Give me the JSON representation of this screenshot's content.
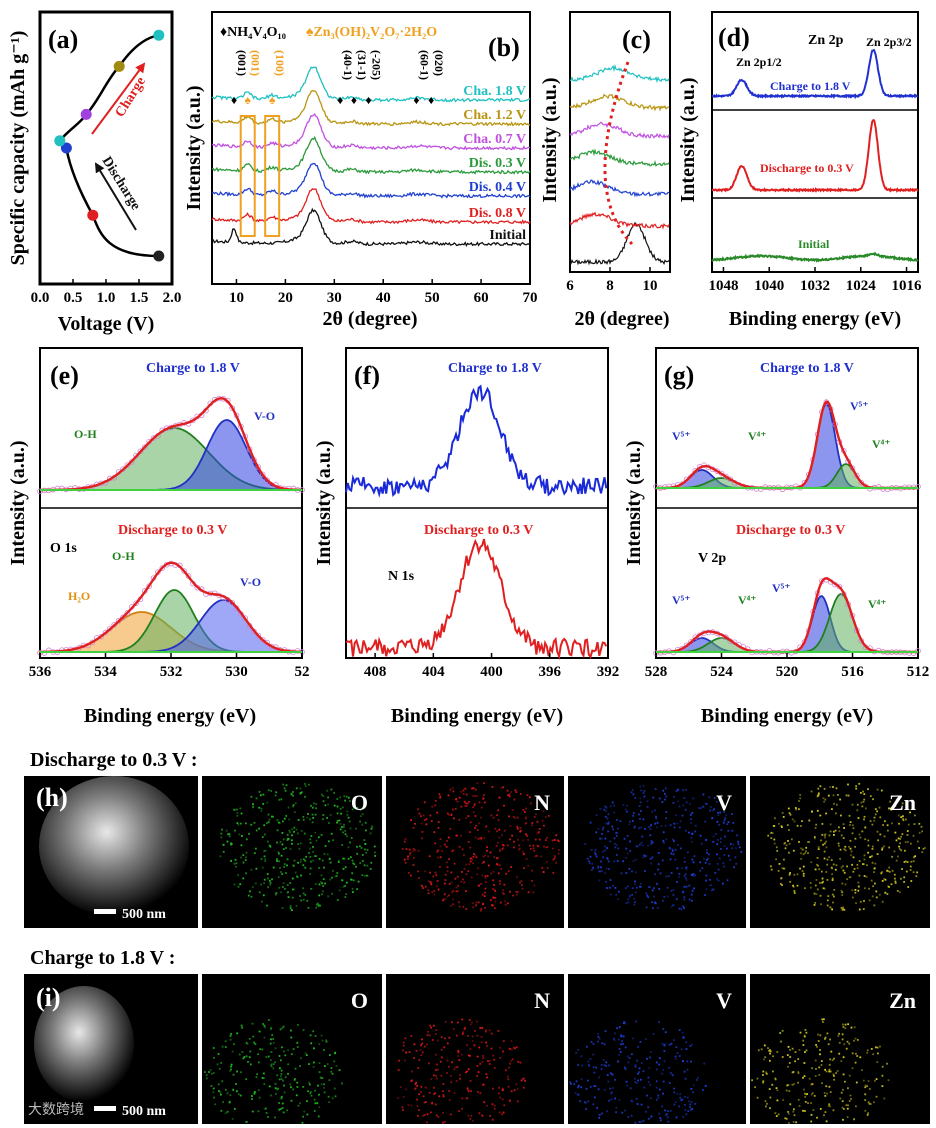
{
  "chart_data": [
    {
      "panel": "(a)",
      "type": "line",
      "xlabel": "Voltage (V)",
      "ylabel": "Specific capacity (mAh g⁻¹)",
      "xlim": [
        0.0,
        2.0
      ],
      "xticks": [
        "0.0",
        "0.5",
        "1.0",
        "1.5",
        "2.0"
      ],
      "annotations": {
        "charge": "Charge",
        "discharge": "Discharge"
      },
      "discharge_points": [
        {
          "v": 1.8,
          "c": 0.05,
          "color": "#222222"
        },
        {
          "v": 0.8,
          "c": 0.22,
          "color": "#e02020"
        },
        {
          "v": 0.4,
          "c": 0.5,
          "color": "#2040d0"
        },
        {
          "v": 0.3,
          "c": 0.53,
          "color": "#20c0c0"
        }
      ],
      "charge_points": [
        {
          "v": 0.7,
          "c": 0.64,
          "color": "#a040e0"
        },
        {
          "v": 1.2,
          "c": 0.84,
          "color": "#a08a10"
        },
        {
          "v": 1.8,
          "c": 0.97,
          "color": "#20c0c0"
        }
      ]
    },
    {
      "panel": "(b)",
      "type": "line",
      "xlabel": "2θ (degree)",
      "ylabel": "Intensity (a.u.)",
      "xlim": [
        5,
        70
      ],
      "xticks": [
        "10",
        "20",
        "30",
        "40",
        "50",
        "60",
        "70"
      ],
      "legend_phases": [
        "♦NH₄V₄O₁₀",
        "♠Zn₃(OH)₂V₂O₇·2H₂O"
      ],
      "peak_labels": [
        {
          "label": "(001)",
          "x": 9.5,
          "phase": "NVO"
        },
        {
          "label": "(001)",
          "x": 12.3,
          "phase": "ZVO"
        },
        {
          "label": "(100)",
          "x": 17.3,
          "phase": "ZVO"
        },
        {
          "label": "(40-1)",
          "x": 31.2,
          "phase": "NVO"
        },
        {
          "label": "(31-1)",
          "x": 34.0,
          "phase": "NVO"
        },
        {
          "label": "(-205)",
          "x": 37.0,
          "phase": "NVO"
        },
        {
          "label": "(60-1)",
          "x": 46.8,
          "phase": "NVO"
        },
        {
          "label": "(020)",
          "x": 49.8,
          "phase": "NVO"
        }
      ],
      "series": [
        {
          "name": "Initial",
          "color": "#111111"
        },
        {
          "name": "Dis. 0.8 V",
          "color": "#e02020"
        },
        {
          "name": "Dis. 0.4 V",
          "color": "#2040d0"
        },
        {
          "name": "Dis. 0.3 V",
          "color": "#2a9a3a"
        },
        {
          "name": "Cha. 0.7 V",
          "color": "#c050e0"
        },
        {
          "name": "Cha. 1.2 V",
          "color": "#b89410"
        },
        {
          "name": "Cha. 1.8 V",
          "color": "#20c0c0"
        }
      ]
    },
    {
      "panel": "(c)",
      "type": "line",
      "xlabel": "2θ (degree)",
      "ylabel": "Intensity (a.u.)",
      "xlim": [
        6,
        11
      ],
      "xticks": [
        "6",
        "8",
        "10"
      ],
      "note": "zoom of low-angle (001) peak; dotted red guide shows peak shift"
    },
    {
      "panel": "(d)",
      "type": "line",
      "xlabel": "Binding energy (eV)",
      "ylabel": "Intensity (a.u.)",
      "xlim": [
        1050,
        1014
      ],
      "xticks": [
        "1048",
        "1040",
        "1032",
        "1024",
        "1016"
      ],
      "title": "Zn 2p",
      "peaks": [
        "Zn 2p1/2",
        "Zn 2p3/2"
      ],
      "series": [
        {
          "name": "Charge to 1.8 V",
          "color": "#2030d0"
        },
        {
          "name": "Discharge to 0.3 V",
          "color": "#e02020"
        },
        {
          "name": "Initial",
          "color": "#2a8a2a"
        }
      ]
    },
    {
      "panel": "(e)",
      "type": "line",
      "xlabel": "Binding energy (eV)",
      "ylabel": "Intensity (a.u.)",
      "xlim": [
        536,
        528
      ],
      "xticks": [
        "536",
        "534",
        "532",
        "530",
        "52"
      ],
      "title": "O 1s",
      "series": [
        {
          "name": "Charge to 1.8 V",
          "components": [
            "O-H",
            "V-O"
          ]
        },
        {
          "name": "Discharge to 0.3 V",
          "components": [
            "H₂O",
            "O-H",
            "V-O"
          ]
        }
      ]
    },
    {
      "panel": "(f)",
      "type": "line",
      "xlabel": "Binding energy (eV)",
      "ylabel": "Intensity (a.u.)",
      "xlim": [
        410,
        392
      ],
      "xticks": [
        "408",
        "404",
        "400",
        "396",
        "392"
      ],
      "title": "N 1s",
      "series": [
        {
          "name": "Charge to 1.8 V",
          "color": "#1a2ad8"
        },
        {
          "name": "Discharge to 0.3 V",
          "color": "#e02020"
        }
      ]
    },
    {
      "panel": "(g)",
      "type": "line",
      "xlabel": "Binding energy (eV)",
      "ylabel": "Intensity (a.u.)",
      "xlim": [
        528,
        512
      ],
      "xticks": [
        "528",
        "524",
        "520",
        "516",
        "512"
      ],
      "title": "V 2p",
      "series": [
        {
          "name": "Charge to 1.8 V",
          "components": [
            "V⁵⁺",
            "V⁴⁺",
            "V⁵⁺",
            "V⁴⁺"
          ]
        },
        {
          "name": "Discharge to 0.3 V",
          "components": [
            "V⁵⁺",
            "V⁴⁺",
            "V⁵⁺",
            "V⁴⁺"
          ]
        }
      ]
    }
  ],
  "mapping": {
    "h_title": "Discharge to 0.3 V :",
    "i_title": "Charge to 1.8 V :",
    "h_label": "(h)",
    "i_label": "(i)",
    "scale": "500 nm",
    "elements": [
      "O",
      "N",
      "V",
      "Zn"
    ],
    "element_colors": [
      "#22c022",
      "#e01818",
      "#2040e0",
      "#d8d020"
    ]
  },
  "text": {
    "a_label": "(a)",
    "b_label": "(b)",
    "c_label": "(c)",
    "d_label": "(d)",
    "e_label": "(e)",
    "f_label": "(f)",
    "g_label": "(g)",
    "zn2p12": "Zn 2p1/2",
    "zn2p32": "Zn 2p3/2",
    "watermark": "大数跨境"
  }
}
